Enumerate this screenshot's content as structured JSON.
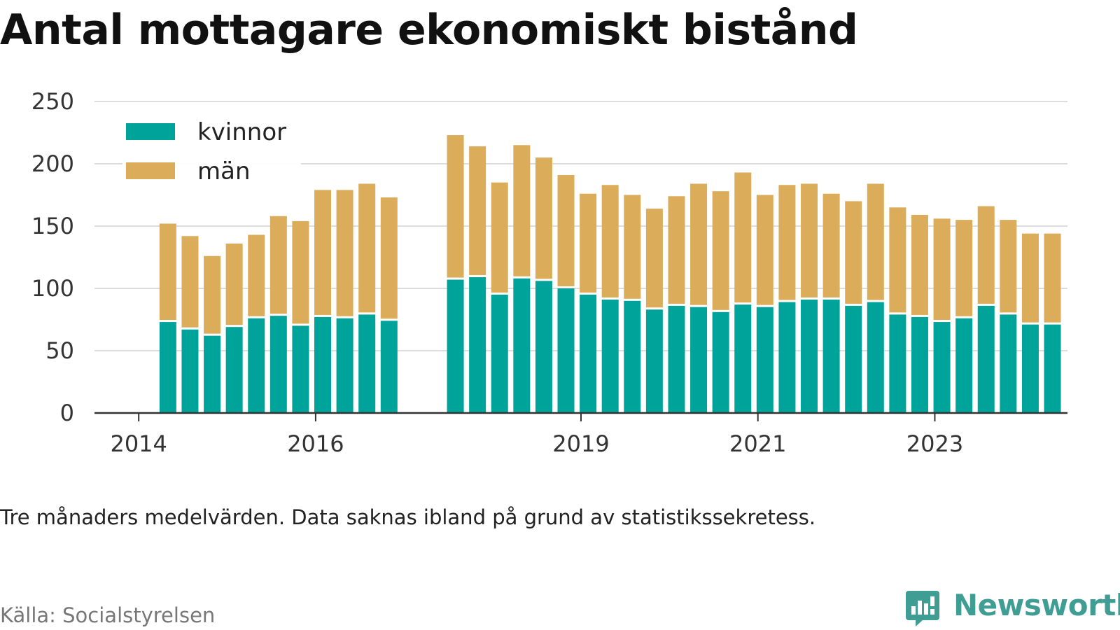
{
  "title": "Antal mottagare ekonomiskt bistånd",
  "note": "Tre månaders medelvärden. Data saknas ibland på grund av statistikssekretess.",
  "source": "Källa: Socialstyrelsen",
  "brand": {
    "name": "Newsworthy",
    "icon": "bar-chart-logo-icon",
    "color": "#3f9d93"
  },
  "colors": {
    "kvinnor": "#00a39a",
    "man": "#dbad5b",
    "grid": "#dddddd",
    "axis": "#333333"
  },
  "chart_data": {
    "type": "bar",
    "stacked": true,
    "title": "Antal mottagare ekonomiskt bistånd",
    "xlabel": "",
    "ylabel": "",
    "ylim": [
      0,
      250
    ],
    "y_ticks": [
      0,
      50,
      100,
      150,
      200,
      250
    ],
    "x_ticks": [
      {
        "label": "2014",
        "x": 2014.0
      },
      {
        "label": "2016",
        "x": 2016.0
      },
      {
        "label": "2019",
        "x": 2019.0
      },
      {
        "label": "2021",
        "x": 2021.0
      },
      {
        "label": "2023",
        "x": 2023.0
      }
    ],
    "xlim": [
      2013.5,
      2024.5
    ],
    "grid": true,
    "legend_position": "top-left",
    "x": [
      2014.33,
      2014.58,
      2014.83,
      2015.08,
      2015.33,
      2015.58,
      2015.83,
      2016.08,
      2016.33,
      2016.58,
      2016.83,
      2017.58,
      2017.83,
      2018.08,
      2018.33,
      2018.58,
      2018.83,
      2019.08,
      2019.33,
      2019.58,
      2019.83,
      2020.08,
      2020.33,
      2020.58,
      2020.83,
      2021.08,
      2021.33,
      2021.58,
      2021.83,
      2022.08,
      2022.33,
      2022.58,
      2022.83,
      2023.08,
      2023.33,
      2023.58,
      2023.83,
      2024.08,
      2024.33
    ],
    "series": [
      {
        "name": "kvinnor",
        "values": [
          73,
          67,
          62,
          69,
          76,
          78,
          70,
          77,
          76,
          79,
          74,
          107,
          109,
          95,
          108,
          106,
          100,
          95,
          91,
          90,
          83,
          86,
          85,
          81,
          87,
          85,
          89,
          91,
          91,
          86,
          89,
          79,
          77,
          73,
          76,
          86,
          79,
          71,
          71
        ]
      },
      {
        "name": "män",
        "values": [
          79,
          75,
          64,
          67,
          67,
          80,
          84,
          102,
          103,
          105,
          99,
          116,
          105,
          90,
          107,
          99,
          91,
          81,
          92,
          85,
          81,
          88,
          99,
          97,
          106,
          90,
          94,
          93,
          85,
          84,
          95,
          86,
          82,
          83,
          79,
          80,
          76,
          73,
          73
        ]
      }
    ]
  }
}
